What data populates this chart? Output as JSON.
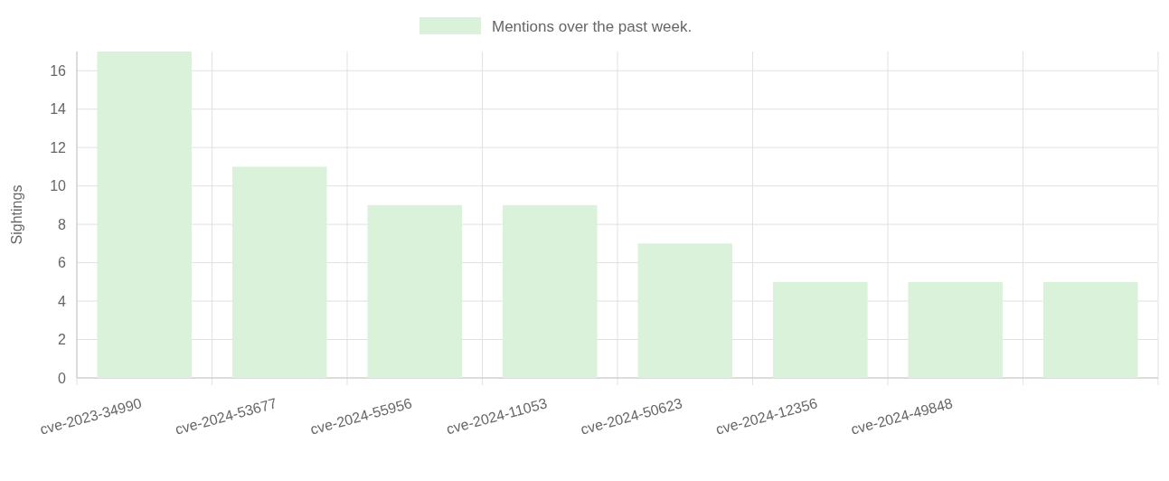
{
  "chart_data": {
    "type": "bar",
    "ylabel": "Sightings",
    "categories": [
      "cve-2023-34990",
      "cve-2024-53677",
      "cve-2024-55956",
      "cve-2024-11053",
      "cve-2024-50623",
      "cve-2024-12356",
      "cve-2024-49848",
      null
    ],
    "series": [
      {
        "name": "Mentions over the past week.",
        "color": "#daf1da",
        "values": [
          17,
          11,
          9,
          9,
          7,
          5,
          5,
          5
        ]
      }
    ],
    "ylim": [
      0,
      17
    ],
    "yticks": [
      0,
      2,
      4,
      6,
      8,
      10,
      12,
      14,
      16
    ],
    "grid": true,
    "legend": "top"
  }
}
